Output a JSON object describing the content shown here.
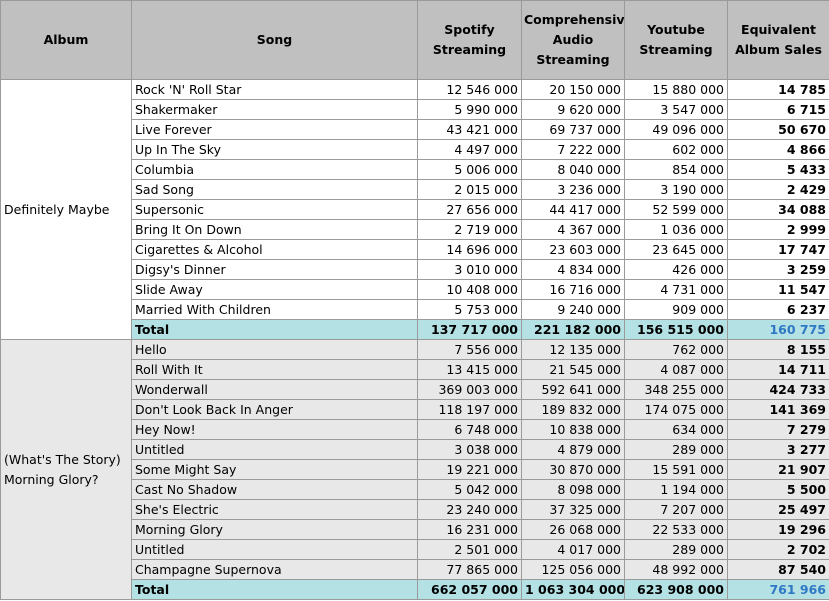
{
  "headers": {
    "album": "Album",
    "song": "Song",
    "spotify": "Spotify Streaming",
    "audio": "Comprehensive Audio Streaming",
    "youtube": "Youtube Streaming",
    "eas": "Equivalent Album Sales"
  },
  "albums": [
    {
      "name": "Definitely Maybe",
      "rows": [
        {
          "song": "Rock 'N' Roll Star",
          "spotify": "12 546 000",
          "audio": "20 150 000",
          "youtube": "15 880 000",
          "eas": "14 785"
        },
        {
          "song": "Shakermaker",
          "spotify": "5 990 000",
          "audio": "9 620 000",
          "youtube": "3 547 000",
          "eas": "6 715"
        },
        {
          "song": "Live Forever",
          "spotify": "43 421 000",
          "audio": "69 737 000",
          "youtube": "49 096 000",
          "eas": "50 670"
        },
        {
          "song": "Up In The Sky",
          "spotify": "4 497 000",
          "audio": "7 222 000",
          "youtube": "602 000",
          "eas": "4 866"
        },
        {
          "song": "Columbia",
          "spotify": "5 006 000",
          "audio": "8 040 000",
          "youtube": "854 000",
          "eas": "5 433"
        },
        {
          "song": "Sad Song",
          "spotify": "2 015 000",
          "audio": "3 236 000",
          "youtube": "3 190 000",
          "eas": "2 429"
        },
        {
          "song": "Supersonic",
          "spotify": "27 656 000",
          "audio": "44 417 000",
          "youtube": "52 599 000",
          "eas": "34 088"
        },
        {
          "song": "Bring It On Down",
          "spotify": "2 719 000",
          "audio": "4 367 000",
          "youtube": "1 036 000",
          "eas": "2 999"
        },
        {
          "song": "Cigarettes & Alcohol",
          "spotify": "14 696 000",
          "audio": "23 603 000",
          "youtube": "23 645 000",
          "eas": "17 747"
        },
        {
          "song": "Digsy's Dinner",
          "spotify": "3 010 000",
          "audio": "4 834 000",
          "youtube": "426 000",
          "eas": "3 259"
        },
        {
          "song": "Slide Away",
          "spotify": "10 408 000",
          "audio": "16 716 000",
          "youtube": "4 731 000",
          "eas": "11 547"
        },
        {
          "song": "Married With Children",
          "spotify": "5 753 000",
          "audio": "9 240 000",
          "youtube": "909 000",
          "eas": "6 237"
        }
      ],
      "total": {
        "label": "Total",
        "spotify": "137 717 000",
        "audio": "221 182 000",
        "youtube": "156 515 000",
        "eas": "160 775"
      }
    },
    {
      "name": "(What's The Story) Morning Glory?",
      "rows": [
        {
          "song": "Hello",
          "spotify": "7 556 000",
          "audio": "12 135 000",
          "youtube": "762 000",
          "eas": "8 155"
        },
        {
          "song": "Roll With It",
          "spotify": "13 415 000",
          "audio": "21 545 000",
          "youtube": "4 087 000",
          "eas": "14 711"
        },
        {
          "song": "Wonderwall",
          "spotify": "369 003 000",
          "audio": "592 641 000",
          "youtube": "348 255 000",
          "eas": "424 733"
        },
        {
          "song": "Don't Look Back In Anger",
          "spotify": "118 197 000",
          "audio": "189 832 000",
          "youtube": "174 075 000",
          "eas": "141 369"
        },
        {
          "song": "Hey Now!",
          "spotify": "6 748 000",
          "audio": "10 838 000",
          "youtube": "634 000",
          "eas": "7 279"
        },
        {
          "song": "Untitled",
          "spotify": "3 038 000",
          "audio": "4 879 000",
          "youtube": "289 000",
          "eas": "3 277"
        },
        {
          "song": "Some Might Say",
          "spotify": "19 221 000",
          "audio": "30 870 000",
          "youtube": "15 591 000",
          "eas": "21 907"
        },
        {
          "song": "Cast No Shadow",
          "spotify": "5 042 000",
          "audio": "8 098 000",
          "youtube": "1 194 000",
          "eas": "5 500"
        },
        {
          "song": "She's Electric",
          "spotify": "23 240 000",
          "audio": "37 325 000",
          "youtube": "7 207 000",
          "eas": "25 497"
        },
        {
          "song": "Morning Glory",
          "spotify": "16 231 000",
          "audio": "26 068 000",
          "youtube": "22 533 000",
          "eas": "19 296"
        },
        {
          "song": "Untitled",
          "spotify": "2 501 000",
          "audio": "4 017 000",
          "youtube": "289 000",
          "eas": "2 702"
        },
        {
          "song": "Champagne Supernova",
          "spotify": "77 865 000",
          "audio": "125 056 000",
          "youtube": "48 992 000",
          "eas": "87 540"
        }
      ],
      "total": {
        "label": "Total",
        "spotify": "662 057 000",
        "audio": "1 063 304 000",
        "youtube": "623 908 000",
        "eas": "761 966"
      }
    }
  ]
}
